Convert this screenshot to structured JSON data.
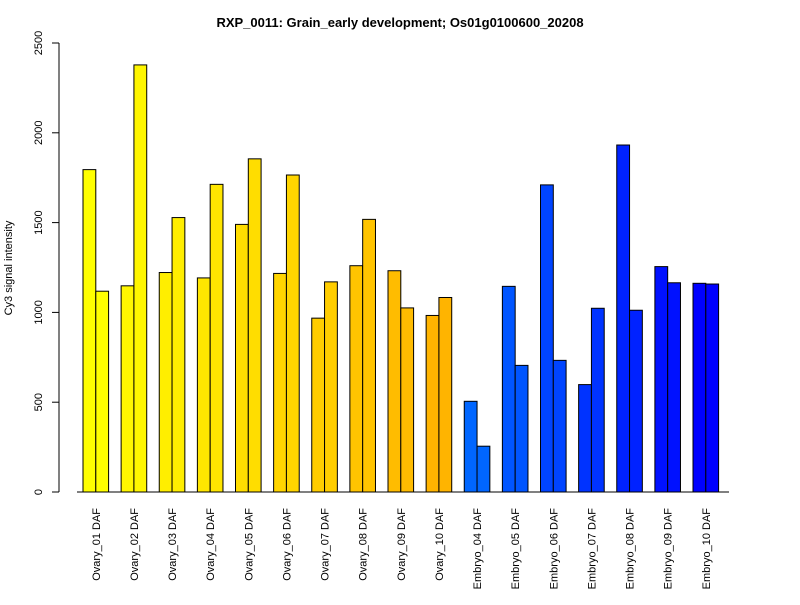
{
  "chart_data": {
    "type": "bar",
    "title": "RXP_0011: Grain_early development; Os01g0100600_20208",
    "xlabel": "",
    "ylabel": "Cy3 signal intensity",
    "ylim": [
      0,
      2500
    ],
    "yticks": [
      0,
      500,
      1000,
      1500,
      2000,
      2500
    ],
    "grid": false,
    "legend": "none",
    "categories": [
      "Ovary_01 DAF",
      "Ovary_02 DAF",
      "Ovary_03 DAF",
      "Ovary_04 DAF",
      "Ovary_05 DAF",
      "Ovary_06 DAF",
      "Ovary_07 DAF",
      "Ovary_08 DAF",
      "Ovary_09 DAF",
      "Ovary_10 DAF",
      "Embryo_04 DAF",
      "Embryo_05 DAF",
      "Embryo_06 DAF",
      "Embryo_07 DAF",
      "Embryo_08 DAF",
      "Embryo_09 DAF",
      "Embryo_10 DAF"
    ],
    "colors": [
      "#FFFF00",
      "#FFF600",
      "#FFEE00",
      "#FFE600",
      "#FFDD00",
      "#FFD500",
      "#FFCD00",
      "#FFC400",
      "#FFBC00",
      "#FFB400",
      "#0066FF",
      "#0055FF",
      "#0044FF",
      "#0033FF",
      "#0022FF",
      "#0011FF",
      "#0000FF"
    ],
    "series": [
      {
        "values": [
          1795,
          1148,
          1222,
          1192,
          1490,
          1217,
          968,
          1260,
          1232,
          983,
          505,
          1145,
          1710,
          598,
          1932,
          1255,
          1162
        ]
      },
      {
        "values": [
          1118,
          2378,
          1528,
          1713,
          1855,
          1765,
          1170,
          1518,
          1025,
          1083,
          255,
          705,
          733,
          1023,
          1012,
          1165,
          1158
        ]
      }
    ]
  }
}
